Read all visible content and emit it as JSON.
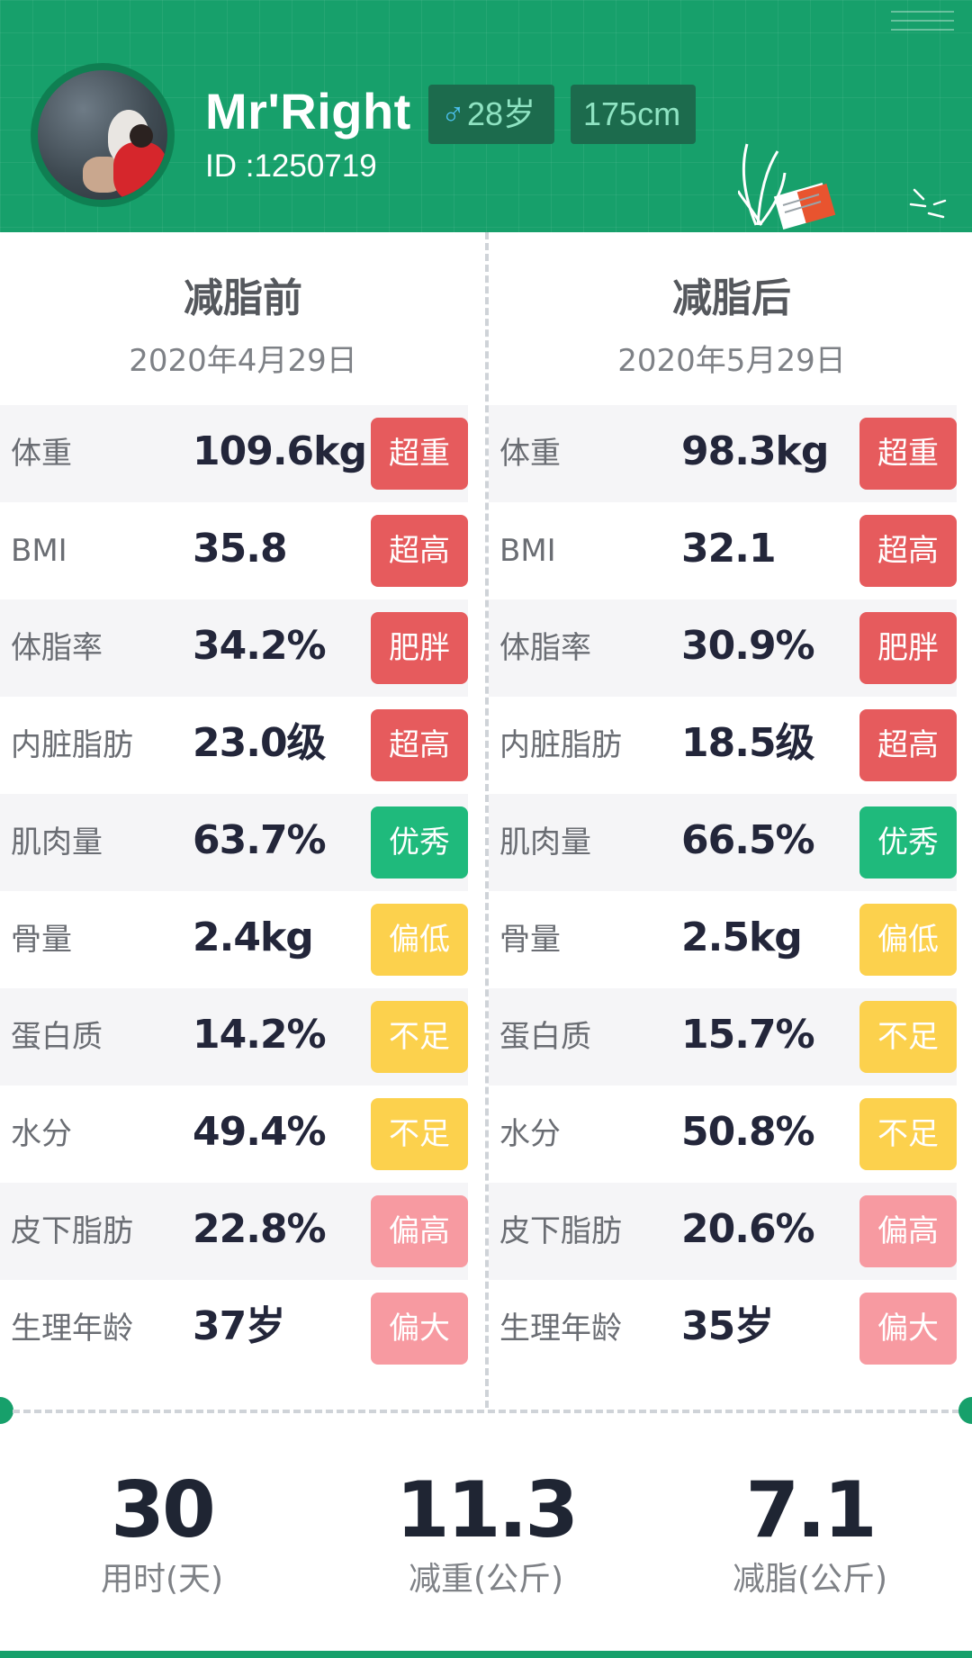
{
  "header": {
    "name": "Mr'Right",
    "id_text": "ID :1250719",
    "gender_symbol": "♂",
    "age": "28岁",
    "height": "175cm",
    "colors": {
      "header_bg": "#17a06b",
      "tag_bg": "#1c6b4d",
      "tag_text": "#8fe3c2"
    }
  },
  "before": {
    "title": "减脂前",
    "date": "2020年4月29日",
    "rows": [
      {
        "label": "体重",
        "value": "109.6kg",
        "status": "超重",
        "level": "red"
      },
      {
        "label": "BMI",
        "value": "35.8",
        "status": "超高",
        "level": "red"
      },
      {
        "label": "体脂率",
        "value": "34.2%",
        "status": "肥胖",
        "level": "red"
      },
      {
        "label": "内脏脂肪",
        "value": "23.0级",
        "status": "超高",
        "level": "red"
      },
      {
        "label": "肌肉量",
        "value": "63.7%",
        "status": "优秀",
        "level": "green"
      },
      {
        "label": "骨量",
        "value": "2.4kg",
        "status": "偏低",
        "level": "yellow"
      },
      {
        "label": "蛋白质",
        "value": "14.2%",
        "status": "不足",
        "level": "yellow"
      },
      {
        "label": "水分",
        "value": "49.4%",
        "status": "不足",
        "level": "yellow"
      },
      {
        "label": "皮下脂肪",
        "value": "22.8%",
        "status": "偏高",
        "level": "pink"
      },
      {
        "label": "生理年龄",
        "value": "37岁",
        "status": "偏大",
        "level": "pink"
      }
    ]
  },
  "after": {
    "title": "减脂后",
    "date": "2020年5月29日",
    "rows": [
      {
        "label": "体重",
        "value": "98.3kg",
        "status": "超重",
        "level": "red"
      },
      {
        "label": "BMI",
        "value": "32.1",
        "status": "超高",
        "level": "red"
      },
      {
        "label": "体脂率",
        "value": "30.9%",
        "status": "肥胖",
        "level": "red"
      },
      {
        "label": "内脏脂肪",
        "value": "18.5级",
        "status": "超高",
        "level": "red"
      },
      {
        "label": "肌肉量",
        "value": "66.5%",
        "status": "优秀",
        "level": "green"
      },
      {
        "label": "骨量",
        "value": "2.5kg",
        "status": "偏低",
        "level": "yellow"
      },
      {
        "label": "蛋白质",
        "value": "15.7%",
        "status": "不足",
        "level": "yellow"
      },
      {
        "label": "水分",
        "value": "50.8%",
        "status": "不足",
        "level": "yellow"
      },
      {
        "label": "皮下脂肪",
        "value": "20.6%",
        "status": "偏高",
        "level": "pink"
      },
      {
        "label": "生理年龄",
        "value": "35岁",
        "status": "偏大",
        "level": "pink"
      }
    ]
  },
  "summary": {
    "days": {
      "value": "30",
      "label": "用时(天)"
    },
    "weight_loss": {
      "value": "11.3",
      "label": "减重(公斤)"
    },
    "fat_loss": {
      "value": "7.1",
      "label": "减脂(公斤)"
    }
  },
  "status_colors": {
    "red": "#e65b5d",
    "green": "#1fba7c",
    "yellow": "#fcd14d",
    "pink": "#f79aa1"
  }
}
